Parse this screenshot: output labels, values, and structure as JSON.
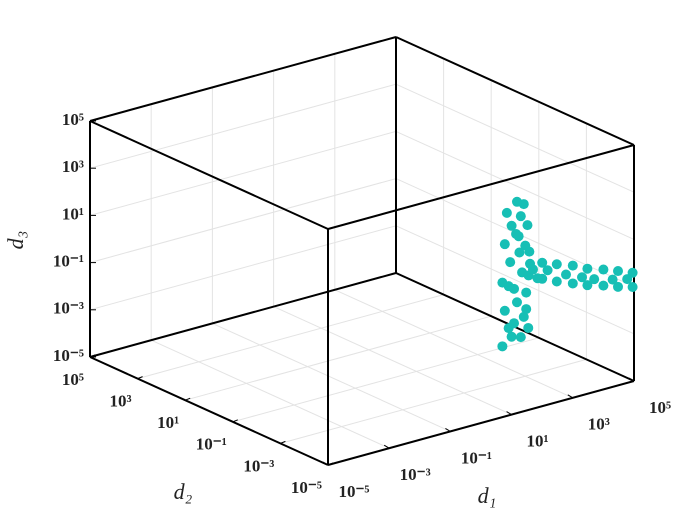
{
  "chart_data": {
    "type": "scatter3d",
    "log_scale": true,
    "grid": true,
    "xlabel": "d₁",
    "ylabel": "d₂",
    "zlabel": "d₃",
    "xlim": [
      1e-05,
      100000
    ],
    "ylim": [
      1e-05,
      100000
    ],
    "zlim": [
      1e-05,
      100000
    ],
    "xticks": [
      {
        "value": 1e-05,
        "label": "10⁻⁵"
      },
      {
        "value": 0.001,
        "label": "10⁻³"
      },
      {
        "value": 0.1,
        "label": "10⁻¹"
      },
      {
        "value": 10,
        "label": "10¹"
      },
      {
        "value": 1000,
        "label": "10³"
      },
      {
        "value": 100000,
        "label": "10⁵"
      }
    ],
    "yticks": [
      {
        "value": 1e-05,
        "label": "10⁻⁵"
      },
      {
        "value": 0.001,
        "label": "10⁻³"
      },
      {
        "value": 0.1,
        "label": "10⁻¹"
      },
      {
        "value": 10,
        "label": "10¹"
      },
      {
        "value": 1000,
        "label": "10³"
      },
      {
        "value": 100000,
        "label": "10⁵"
      }
    ],
    "zticks": [
      {
        "value": 1e-05,
        "label": "10⁻⁵"
      },
      {
        "value": 0.001,
        "label": "10⁻³"
      },
      {
        "value": 0.1,
        "label": "10⁻¹"
      },
      {
        "value": 10,
        "label": "10¹"
      },
      {
        "value": 1000,
        "label": "10³"
      },
      {
        "value": 100000,
        "label": "10⁵"
      }
    ],
    "series": [
      {
        "color": "#17bfb5",
        "x": [
          5,
          10,
          20,
          35,
          8,
          25,
          6,
          15,
          30,
          12,
          5,
          22,
          40,
          9,
          18,
          28,
          6,
          14,
          33,
          10,
          20,
          7,
          25,
          15,
          30,
          8,
          38,
          12,
          17,
          36,
          100,
          100,
          300,
          300,
          1000,
          1000,
          3000,
          3000,
          10000,
          10000,
          30000,
          30000,
          90000,
          90000,
          150,
          600,
          2000,
          5000,
          20000,
          60000,
          50,
          70
        ],
        "y": [
          1e-05,
          1e-05,
          1e-05,
          1e-05,
          1e-05,
          1e-05,
          1e-05,
          1e-05,
          1e-05,
          1e-05,
          1e-05,
          1e-05,
          1e-05,
          1e-05,
          1e-05,
          1e-05,
          1e-05,
          1e-05,
          1e-05,
          1e-05,
          1e-05,
          1e-05,
          1e-05,
          1e-05,
          1e-05,
          1e-05,
          1e-05,
          1e-05,
          1e-05,
          1e-05,
          1e-05,
          1e-05,
          1e-05,
          1e-05,
          1e-05,
          1e-05,
          1e-05,
          1e-05,
          1e-05,
          1e-05,
          1e-05,
          1e-05,
          1e-05,
          1e-05,
          1e-05,
          1e-05,
          1e-05,
          1e-05,
          1e-05,
          1e-05,
          1e-05,
          1e-05
        ],
        "z": [
          0.01,
          0.02,
          0.015,
          0.03,
          0.05,
          0.1,
          0.3,
          0.5,
          1,
          2,
          5,
          8,
          15,
          30,
          60,
          100,
          200,
          400,
          700,
          1000,
          2000,
          4000,
          6000,
          9000,
          0.2,
          3,
          50,
          0.07,
          300,
          5,
          2.5,
          12,
          1.3,
          7,
          0.7,
          4,
          0.4,
          2,
          0.25,
          1.2,
          0.15,
          0.7,
          0.1,
          0.4,
          5,
          2,
          1,
          0.6,
          0.35,
          0.25,
          8,
          3
        ]
      }
    ]
  }
}
